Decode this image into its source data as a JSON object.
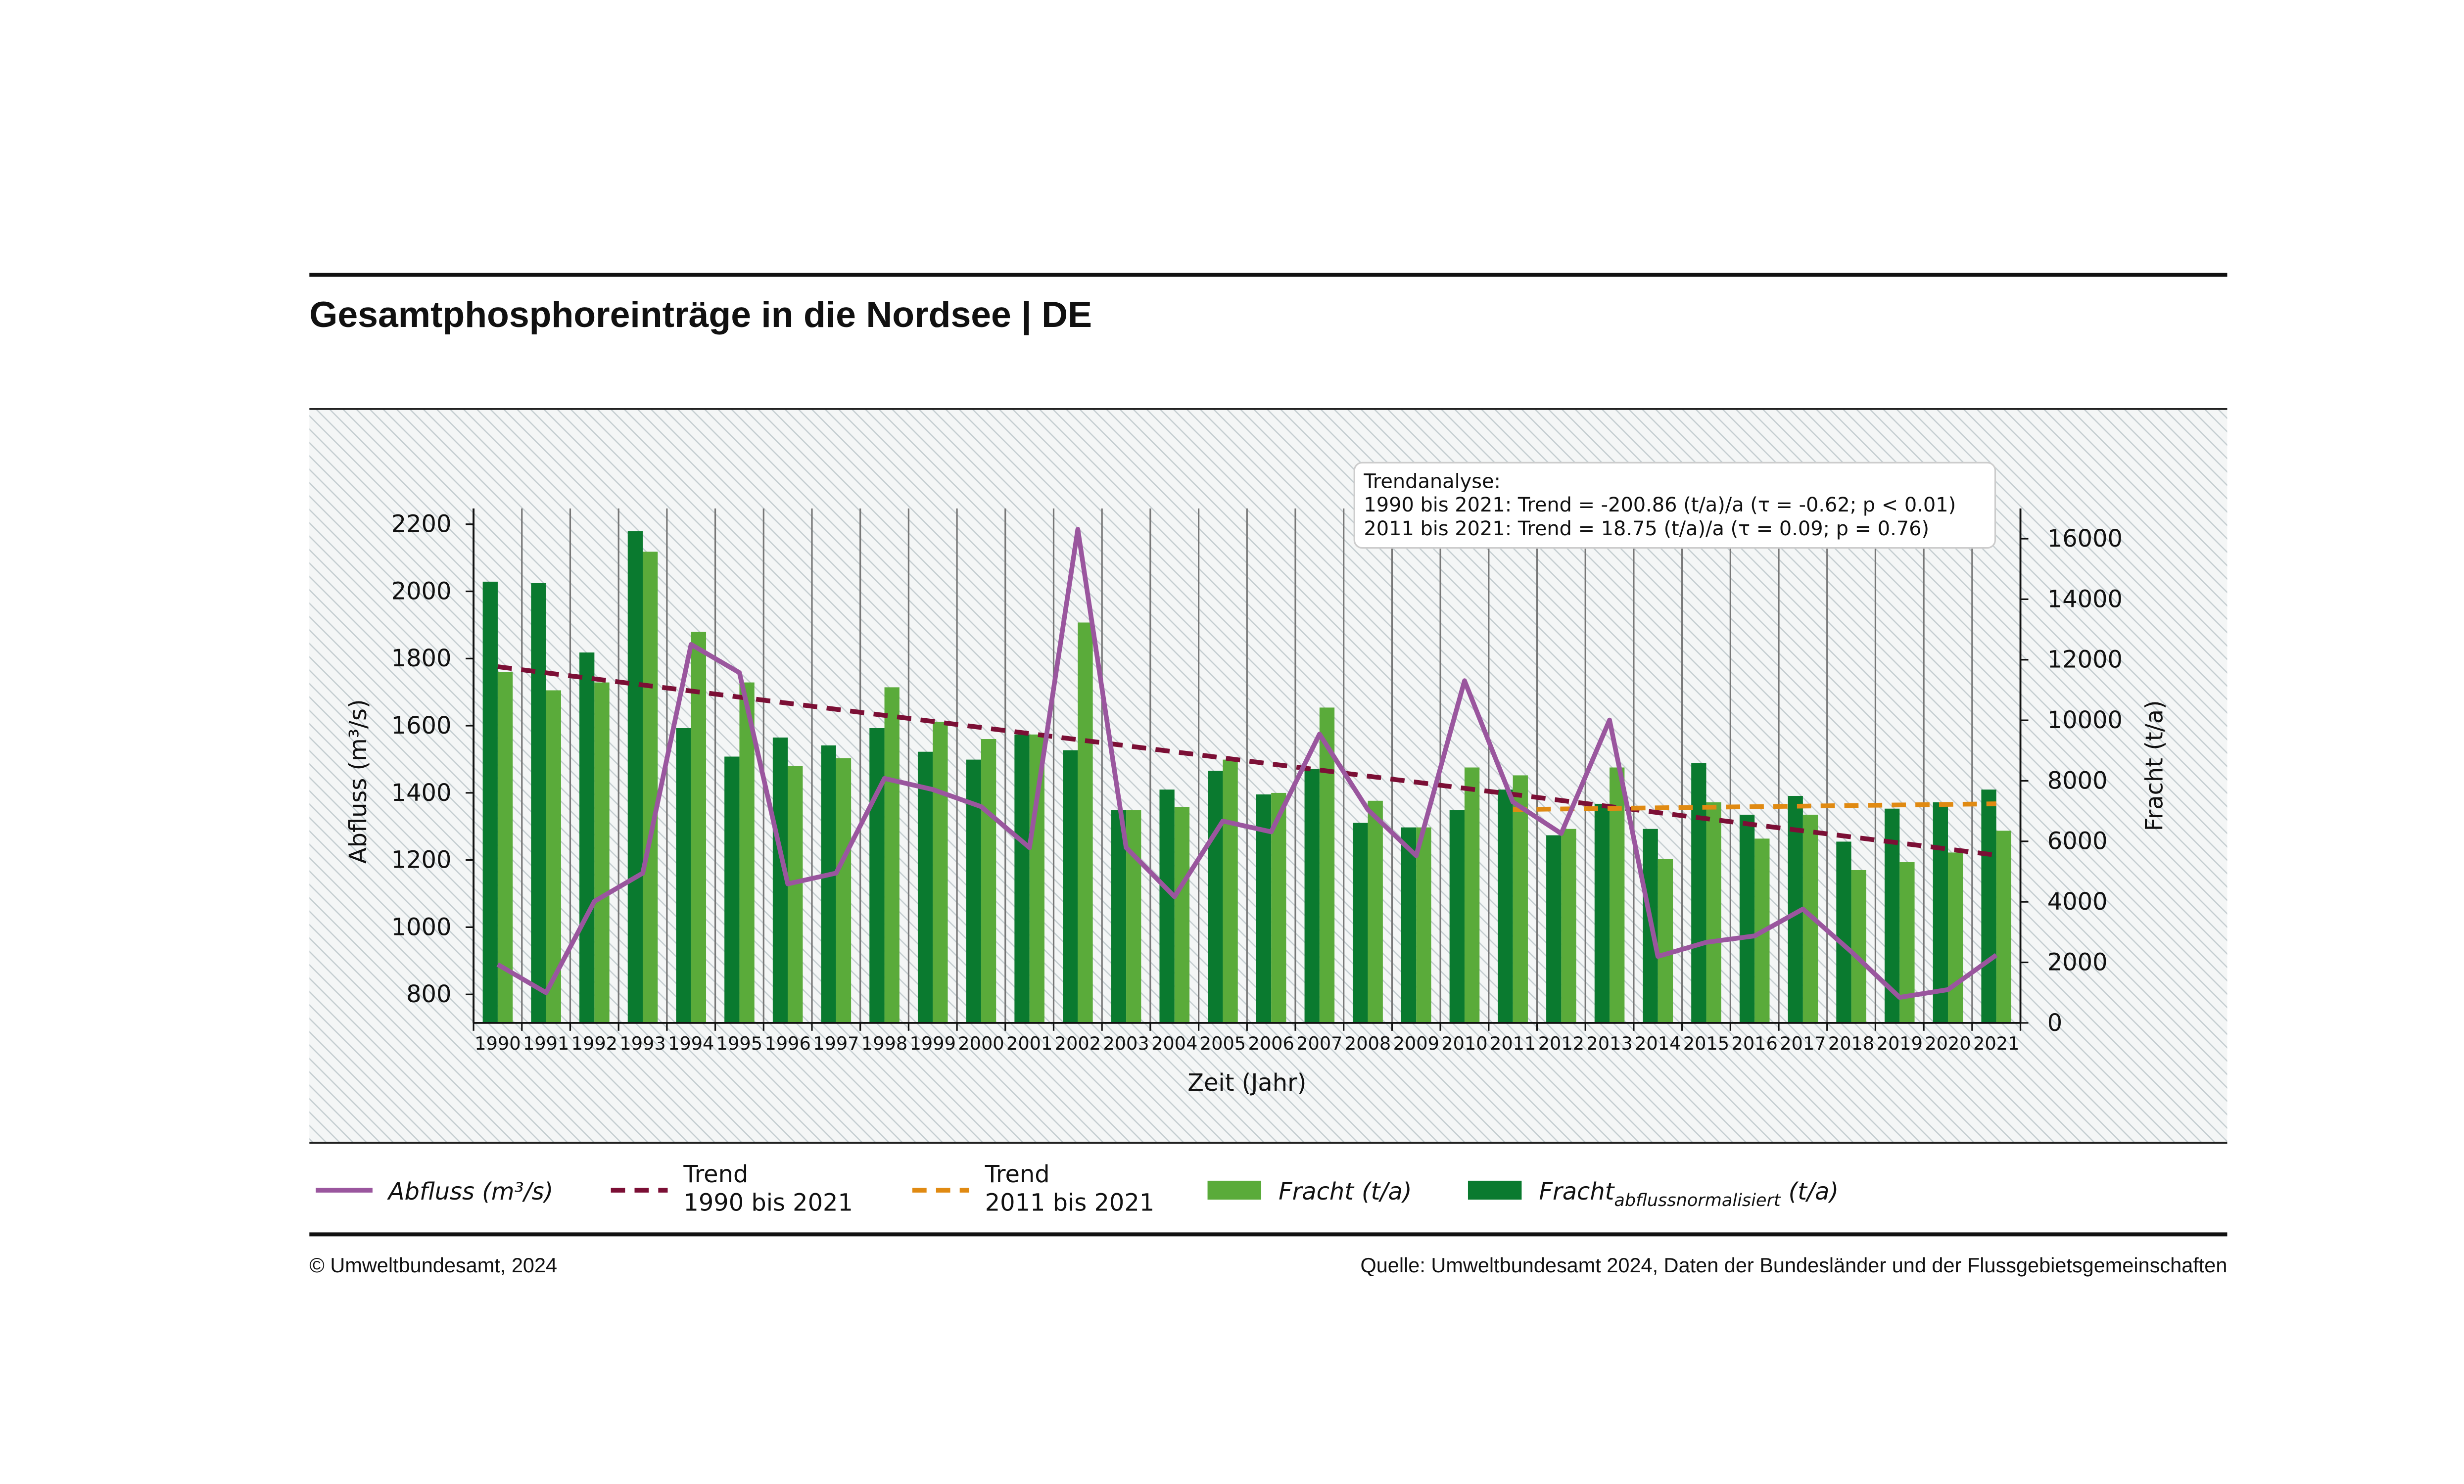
{
  "header": {
    "title": "Gesamtphosphoreinträge in die Nordsee | DE"
  },
  "footer": {
    "copyright": "© Umweltbundesamt, 2024",
    "source": "Quelle: Umweltbundesamt 2024, Daten der Bundesländer und der Flussgebietsgemeinschaften"
  },
  "chart_data": {
    "type": "bar",
    "x_label": "Zeit (Jahr)",
    "y_label": "Abfluss (m³/s)",
    "y2_label": "Fracht (t/a)",
    "categories": [
      1990,
      1991,
      1992,
      1993,
      1994,
      1995,
      1996,
      1997,
      1998,
      1999,
      2000,
      2001,
      2002,
      2003,
      2004,
      2005,
      2006,
      2007,
      2008,
      2009,
      2010,
      2011,
      2012,
      2013,
      2014,
      2015,
      2016,
      2017,
      2018,
      2019,
      2020,
      2021
    ],
    "ylim": [
      715,
      2247
    ],
    "yticks": [
      800,
      1000,
      1200,
      1400,
      1600,
      1800,
      2000,
      2200
    ],
    "y2lim": [
      0,
      17000
    ],
    "y2ticks": [
      0,
      2000,
      4000,
      6000,
      8000,
      10000,
      12000,
      14000,
      16000
    ],
    "series": [
      {
        "name": "Abfluss (m³/s)",
        "type": "line",
        "color": "#9a569e",
        "values": [
          889,
          805,
          1077,
          1161,
          1842,
          1758,
          1129,
          1161,
          1443,
          1410,
          1359,
          1237,
          2185,
          1237,
          1091,
          1316,
          1284,
          1575,
          1350,
          1213,
          1734,
          1373,
          1279,
          1617,
          913,
          955,
          974,
          1054,
          927,
          791,
          814,
          917
        ]
      },
      {
        "name": "Fracht",
        "unit": "(t/a)",
        "type": "bar",
        "axis": "y2",
        "color": "#5aab3a",
        "values": [
          11600,
          10990,
          11250,
          15570,
          12920,
          11250,
          8490,
          8750,
          11090,
          9950,
          9380,
          9530,
          13230,
          7030,
          7140,
          8700,
          7600,
          10420,
          7340,
          6460,
          8440,
          8180,
          6410,
          8440,
          5420,
          7290,
          6090,
          6880,
          5050,
          5310,
          5630,
          6350
        ]
      },
      {
        "name": "Fracht",
        "name_sub": "abflussnormalisiert",
        "unit": "(t/a)",
        "type": "bar",
        "axis": "y2",
        "color": "#0a7a2f",
        "values": [
          14580,
          14530,
          12240,
          16250,
          9740,
          8800,
          9430,
          9170,
          9740,
          8960,
          8700,
          9530,
          9010,
          7030,
          7710,
          8330,
          7550,
          8390,
          6610,
          6460,
          7030,
          7710,
          6200,
          7240,
          6410,
          8590,
          6880,
          7500,
          5990,
          7080,
          7290,
          7710
        ]
      }
    ],
    "trends": [
      {
        "name": "Trend",
        "period": "1990 bis 2021",
        "color": "#7b0f35",
        "axis": "y2",
        "x": [
          1990,
          2021
        ],
        "values": [
          11770,
          5544
        ]
      },
      {
        "name": "Trend",
        "period": "2011 bis 2021",
        "color": "#e08a12",
        "axis": "y2",
        "x": [
          2011,
          2021
        ],
        "values": [
          7050,
          7240
        ]
      }
    ],
    "annotation": [
      "Trendanalyse:",
      "1990 bis 2021: Trend = -200.86 (t/a)/a (τ = -0.62; p < 0.01)",
      "2011 bis 2021: Trend =  18.75 (t/a)/a (τ = 0.09; p = 0.76)"
    ]
  }
}
